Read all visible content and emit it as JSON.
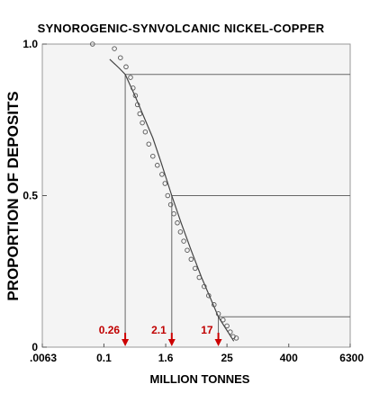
{
  "chart_data": {
    "type": "line",
    "title": "SYNOROGENIC-SYNVOLCANIC NICKEL-COPPER",
    "xlabel": "MILLION TONNES",
    "ylabel": "PROPORTION OF DEPOSITS",
    "x_scale": "log",
    "xlim": [
      0.0063,
      6300
    ],
    "ylim": [
      0,
      1
    ],
    "x_ticks": [
      {
        "value": 0.0063,
        "label": ".0063"
      },
      {
        "value": 0.1,
        "label": "0.1"
      },
      {
        "value": 1.6,
        "label": "1.6"
      },
      {
        "value": 25,
        "label": "25"
      },
      {
        "value": 400,
        "label": "400"
      },
      {
        "value": 6300,
        "label": "6300"
      }
    ],
    "y_ticks": [
      {
        "value": 0,
        "label": "0"
      },
      {
        "value": 0.5,
        "label": "0.5"
      },
      {
        "value": 1,
        "label": "1.0"
      }
    ],
    "grid": false,
    "series": [
      {
        "kind": "observed",
        "style": "open-circles",
        "color": "#555555",
        "x": [
          0.06,
          0.16,
          0.21,
          0.27,
          0.33,
          0.37,
          0.41,
          0.45,
          0.5,
          0.56,
          0.64,
          0.75,
          0.9,
          1.1,
          1.35,
          1.55,
          1.75,
          2.0,
          2.3,
          2.7,
          3.1,
          3.6,
          4.2,
          5.0,
          6.0,
          7.2,
          9.0,
          11,
          14,
          17,
          21,
          25,
          29,
          33,
          38
        ],
        "y": [
          1.0,
          0.985,
          0.955,
          0.925,
          0.89,
          0.855,
          0.83,
          0.8,
          0.77,
          0.74,
          0.71,
          0.67,
          0.63,
          0.6,
          0.57,
          0.54,
          0.5,
          0.47,
          0.44,
          0.41,
          0.38,
          0.35,
          0.32,
          0.29,
          0.26,
          0.23,
          0.2,
          0.17,
          0.14,
          0.11,
          0.09,
          0.07,
          0.05,
          0.035,
          0.03
        ]
      },
      {
        "kind": "fitted",
        "style": "line",
        "color": "#444444",
        "x": [
          0.13,
          0.2,
          0.26,
          0.4,
          0.6,
          0.9,
          1.3,
          2.1,
          3.2,
          5.0,
          8.0,
          12,
          17,
          24,
          34
        ],
        "y": [
          0.95,
          0.92,
          0.9,
          0.83,
          0.76,
          0.69,
          0.61,
          0.5,
          0.41,
          0.32,
          0.23,
          0.16,
          0.1,
          0.06,
          0.02
        ]
      }
    ],
    "percentiles": [
      {
        "value": 0.26,
        "label": "0.26",
        "proportion": 0.9
      },
      {
        "value": 2.1,
        "label": "2.1",
        "proportion": 0.5
      },
      {
        "value": 17,
        "label": "17",
        "proportion": 0.1
      }
    ],
    "colors": {
      "annotation": "#cc0000",
      "axis": "#888888",
      "ref_lines": "#666666",
      "points": "#555555",
      "curve": "#444444"
    }
  }
}
